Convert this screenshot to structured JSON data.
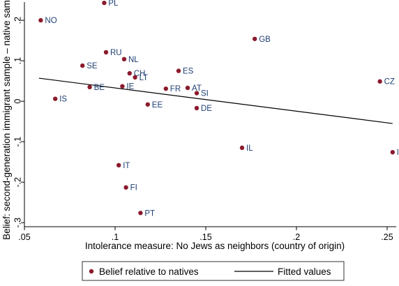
{
  "colors": {
    "point": "#8b1a2c",
    "label": "#1f3f73",
    "axis": "#000000",
    "fit_line": "#000000",
    "background": "#ffffff"
  },
  "chart_data": {
    "type": "scatter",
    "xlabel": "Intolerance measure: No Jews as neighbors (country of origin)",
    "ylabel": "Belief: second-generation immigrant sample – native sample",
    "xlim": [
      0.05,
      0.255
    ],
    "ylim": [
      -0.31,
      0.245
    ],
    "x_ticks": [
      {
        "value": 0.05,
        "label": ".05"
      },
      {
        "value": 0.1,
        "label": ".1"
      },
      {
        "value": 0.15,
        "label": ".15"
      },
      {
        "value": 0.2,
        "label": ".2"
      },
      {
        "value": 0.25,
        "label": ".25"
      }
    ],
    "y_ticks": [
      {
        "value": 0.2,
        "label": ".2"
      },
      {
        "value": 0.1,
        "label": ".1"
      },
      {
        "value": 0,
        "label": "0"
      },
      {
        "value": -0.1,
        "label": "-.1"
      },
      {
        "value": -0.2,
        "label": "-.2"
      },
      {
        "value": -0.3,
        "label": "-.3"
      }
    ],
    "grid": false,
    "legend_position": "bottom",
    "series": [
      {
        "name": "Belief relative to natives",
        "kind": "scatter",
        "points": [
          {
            "label": "PL",
            "x": 0.094,
            "y": 0.243
          },
          {
            "label": "NO",
            "x": 0.059,
            "y": 0.2
          },
          {
            "label": "GB",
            "x": 0.177,
            "y": 0.154
          },
          {
            "label": "RU",
            "x": 0.095,
            "y": 0.121
          },
          {
            "label": "NL",
            "x": 0.105,
            "y": 0.104
          },
          {
            "label": "SE",
            "x": 0.082,
            "y": 0.088
          },
          {
            "label": "ES",
            "x": 0.135,
            "y": 0.075
          },
          {
            "label": "CH",
            "x": 0.108,
            "y": 0.069
          },
          {
            "label": "LT",
            "x": 0.111,
            "y": 0.059
          },
          {
            "label": "CZ",
            "x": 0.246,
            "y": 0.049
          },
          {
            "label": "BE",
            "x": 0.086,
            "y": 0.035
          },
          {
            "label": "IE",
            "x": 0.104,
            "y": 0.037
          },
          {
            "label": "FR",
            "x": 0.128,
            "y": 0.031
          },
          {
            "label": "AT",
            "x": 0.14,
            "y": 0.033
          },
          {
            "label": "SI",
            "x": 0.145,
            "y": 0.02
          },
          {
            "label": "IS",
            "x": 0.067,
            "y": 0.006
          },
          {
            "label": "EE",
            "x": 0.118,
            "y": -0.008
          },
          {
            "label": "DE",
            "x": 0.145,
            "y": -0.017
          },
          {
            "label": "IL",
            "x": 0.17,
            "y": -0.115
          },
          {
            "label": "I",
            "x": 0.253,
            "y": -0.126
          },
          {
            "label": "IT",
            "x": 0.102,
            "y": -0.158
          },
          {
            "label": "FI",
            "x": 0.106,
            "y": -0.213
          },
          {
            "label": "PT",
            "x": 0.114,
            "y": -0.276
          }
        ]
      },
      {
        "name": "Fitted values",
        "kind": "line",
        "x": [
          0.058,
          0.253
        ],
        "y": [
          0.057,
          -0.055
        ]
      }
    ]
  }
}
